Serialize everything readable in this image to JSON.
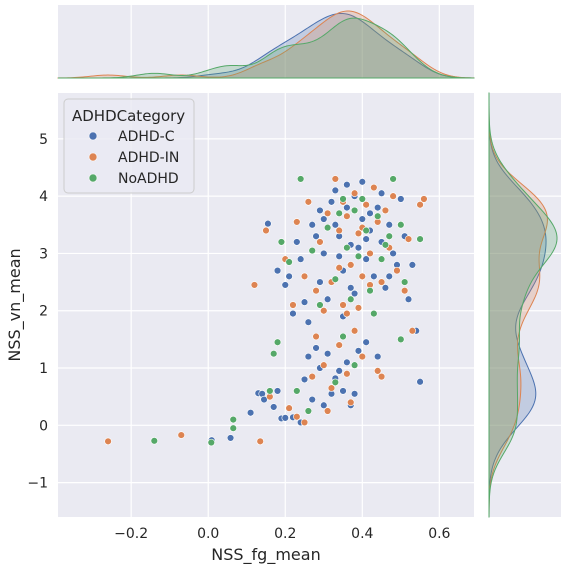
{
  "chart_data": {
    "type": "scatter",
    "title": "",
    "xlabel": "NSS_fg_mean",
    "ylabel": "NSS_vn_mean",
    "xlim": [
      -0.39,
      0.69
    ],
    "ylim": [
      -1.6,
      5.8
    ],
    "x_ticks": [
      -0.2,
      0.0,
      0.2,
      0.4,
      0.6
    ],
    "x_tick_labels": [
      "−0.2",
      "0.0",
      "0.2",
      "0.4",
      "0.6"
    ],
    "y_ticks": [
      -1,
      0,
      1,
      2,
      3,
      4,
      5
    ],
    "y_tick_labels": [
      "−1",
      "0",
      "1",
      "2",
      "3",
      "4",
      "5"
    ],
    "grid": true,
    "legend": {
      "title": "ADHDCategory",
      "position": "top-left"
    },
    "marginals": {
      "top": "kde of NSS_fg_mean by category",
      "right": "kde of NSS_vn_mean by category"
    },
    "series": [
      {
        "name": "ADHD-C",
        "color": "#4c72b0",
        "points": [
          [
            0.009,
            -0.26
          ],
          [
            0.058,
            -0.22
          ],
          [
            0.11,
            0.22
          ],
          [
            0.13,
            0.56
          ],
          [
            0.14,
            0.55
          ],
          [
            0.145,
            0.45
          ],
          [
            0.17,
            0.32
          ],
          [
            0.18,
            0.6
          ],
          [
            0.19,
            0.12
          ],
          [
            0.2,
            0.13
          ],
          [
            0.22,
            0.14
          ],
          [
            0.24,
            0.05
          ],
          [
            0.25,
            0.8
          ],
          [
            0.26,
            1.2
          ],
          [
            0.27,
            0.45
          ],
          [
            0.28,
            1.35
          ],
          [
            0.29,
            1.0
          ],
          [
            0.3,
            0.35
          ],
          [
            0.31,
            1.25
          ],
          [
            0.32,
            0.55
          ],
          [
            0.33,
            0.82
          ],
          [
            0.34,
            0.95
          ],
          [
            0.35,
            0.6
          ],
          [
            0.36,
            1.1
          ],
          [
            0.37,
            0.35
          ],
          [
            0.38,
            0.55
          ],
          [
            0.39,
            1.3
          ],
          [
            0.41,
            1.45
          ],
          [
            0.44,
            1.2
          ],
          [
            0.55,
            0.76
          ],
          [
            0.155,
            3.52
          ],
          [
            0.18,
            2.7
          ],
          [
            0.2,
            2.45
          ],
          [
            0.21,
            2.6
          ],
          [
            0.22,
            1.95
          ],
          [
            0.23,
            3.2
          ],
          [
            0.24,
            2.9
          ],
          [
            0.25,
            2.15
          ],
          [
            0.26,
            1.8
          ],
          [
            0.27,
            3.5
          ],
          [
            0.28,
            3.3
          ],
          [
            0.29,
            2.5
          ],
          [
            0.3,
            3.0
          ],
          [
            0.3,
            3.6
          ],
          [
            0.31,
            2.2
          ],
          [
            0.32,
            3.9
          ],
          [
            0.33,
            4.1
          ],
          [
            0.34,
            3.3
          ],
          [
            0.35,
            2.7
          ],
          [
            0.36,
            3.8
          ],
          [
            0.37,
            2.4
          ],
          [
            0.38,
            4.0
          ],
          [
            0.39,
            3.1
          ],
          [
            0.4,
            3.6
          ],
          [
            0.41,
            2.9
          ],
          [
            0.42,
            3.4
          ],
          [
            0.43,
            2.6
          ],
          [
            0.44,
            3.8
          ],
          [
            0.45,
            3.2
          ],
          [
            0.46,
            2.4
          ],
          [
            0.47,
            3.5
          ],
          [
            0.48,
            3.0
          ],
          [
            0.49,
            2.8
          ],
          [
            0.5,
            3.95
          ],
          [
            0.51,
            3.3
          ],
          [
            0.52,
            2.2
          ],
          [
            0.53,
            2.8
          ],
          [
            0.54,
            1.65
          ],
          [
            0.36,
            4.2
          ],
          [
            0.4,
            4.25
          ],
          [
            0.42,
            3.7
          ],
          [
            0.34,
            2.95
          ],
          [
            0.38,
            2.3
          ],
          [
            0.45,
            4.05
          ],
          [
            0.33,
            3.5
          ],
          [
            0.37,
            3.15
          ],
          [
            0.41,
            3.25
          ],
          [
            0.29,
            3.75
          ],
          [
            0.47,
            2.6
          ],
          [
            0.35,
            1.9
          ]
        ]
      },
      {
        "name": "ADHD-IN",
        "color": "#dd8452",
        "points": [
          [
            -0.26,
            -0.28
          ],
          [
            -0.07,
            -0.17
          ],
          [
            0.135,
            -0.28
          ],
          [
            0.12,
            2.45
          ],
          [
            0.16,
            0.5
          ],
          [
            0.21,
            0.3
          ],
          [
            0.23,
            0.15
          ],
          [
            0.25,
            0.05
          ],
          [
            0.27,
            0.85
          ],
          [
            0.28,
            1.55
          ],
          [
            0.3,
            1.05
          ],
          [
            0.31,
            0.25
          ],
          [
            0.32,
            0.65
          ],
          [
            0.34,
            1.4
          ],
          [
            0.36,
            0.9
          ],
          [
            0.37,
            0.4
          ],
          [
            0.38,
            1.65
          ],
          [
            0.4,
            1.2
          ],
          [
            0.44,
            0.95
          ],
          [
            0.45,
            0.85
          ],
          [
            0.15,
            3.4
          ],
          [
            0.2,
            2.9
          ],
          [
            0.22,
            2.1
          ],
          [
            0.23,
            3.55
          ],
          [
            0.25,
            2.6
          ],
          [
            0.26,
            3.9
          ],
          [
            0.28,
            2.35
          ],
          [
            0.29,
            3.2
          ],
          [
            0.3,
            2.0
          ],
          [
            0.31,
            3.7
          ],
          [
            0.32,
            2.5
          ],
          [
            0.33,
            4.3
          ],
          [
            0.34,
            3.4
          ],
          [
            0.35,
            2.1
          ],
          [
            0.36,
            3.65
          ],
          [
            0.37,
            2.8
          ],
          [
            0.38,
            4.05
          ],
          [
            0.39,
            3.35
          ],
          [
            0.4,
            2.6
          ],
          [
            0.41,
            3.85
          ],
          [
            0.42,
            3.0
          ],
          [
            0.43,
            4.15
          ],
          [
            0.44,
            3.55
          ],
          [
            0.45,
            2.5
          ],
          [
            0.46,
            3.75
          ],
          [
            0.47,
            3.1
          ],
          [
            0.48,
            4.0
          ],
          [
            0.49,
            2.7
          ],
          [
            0.5,
            3.5
          ],
          [
            0.51,
            2.35
          ],
          [
            0.52,
            3.25
          ],
          [
            0.53,
            1.65
          ],
          [
            0.55,
            3.85
          ],
          [
            0.56,
            3.95
          ],
          [
            0.34,
            2.75
          ],
          [
            0.36,
            1.95
          ],
          [
            0.39,
            2.05
          ],
          [
            0.42,
            2.45
          ],
          [
            0.35,
            3.9
          ],
          [
            0.4,
            3.45
          ]
        ]
      },
      {
        "name": "NoADHD",
        "color": "#55a868",
        "points": [
          [
            -0.14,
            -0.27
          ],
          [
            0.008,
            -0.3
          ],
          [
            0.065,
            0.1
          ],
          [
            0.065,
            -0.05
          ],
          [
            0.16,
            0.6
          ],
          [
            0.17,
            1.25
          ],
          [
            0.18,
            1.45
          ],
          [
            0.23,
            0.6
          ],
          [
            0.26,
            0.25
          ],
          [
            0.33,
            0.75
          ],
          [
            0.35,
            1.55
          ],
          [
            0.38,
            1.05
          ],
          [
            0.5,
            1.5
          ],
          [
            0.19,
            3.2
          ],
          [
            0.24,
            4.3
          ],
          [
            0.27,
            3.05
          ],
          [
            0.29,
            2.1
          ],
          [
            0.31,
            3.45
          ],
          [
            0.33,
            2.55
          ],
          [
            0.35,
            3.95
          ],
          [
            0.36,
            3.1
          ],
          [
            0.37,
            2.2
          ],
          [
            0.38,
            3.75
          ],
          [
            0.39,
            2.95
          ],
          [
            0.41,
            3.4
          ],
          [
            0.42,
            2.35
          ],
          [
            0.44,
            3.65
          ],
          [
            0.45,
            2.9
          ],
          [
            0.46,
            3.15
          ],
          [
            0.47,
            3.3
          ],
          [
            0.48,
            4.3
          ],
          [
            0.5,
            3.5
          ],
          [
            0.51,
            2.5
          ],
          [
            0.55,
            3.25
          ],
          [
            0.21,
            2.85
          ],
          [
            0.43,
            1.95
          ],
          [
            0.4,
            3.95
          ],
          [
            0.34,
            3.7
          ]
        ]
      }
    ]
  }
}
